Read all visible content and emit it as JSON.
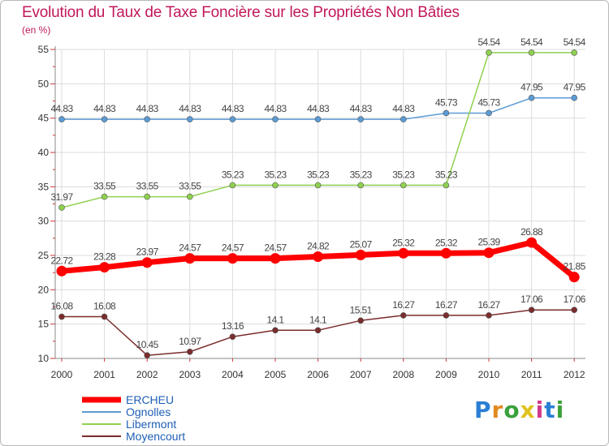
{
  "chart_data": {
    "type": "line",
    "title": "Evolution du Taux de Taxe Foncière sur les Propriétés Non Bâties",
    "ylabel": "(en %)",
    "xlabel": "",
    "ylim": [
      10,
      55
    ],
    "yticks": [
      10,
      15,
      20,
      25,
      30,
      35,
      40,
      45,
      50,
      55
    ],
    "categories": [
      "2000",
      "2001",
      "2002",
      "2003",
      "2004",
      "2005",
      "2006",
      "2007",
      "2008",
      "2009",
      "2010",
      "2011",
      "2012"
    ],
    "grid": true,
    "legend_position": "bottom-left",
    "series": [
      {
        "name": "ERCHEU",
        "color": "#ff0000",
        "emphasis": true,
        "values": [
          22.72,
          23.28,
          23.97,
          24.57,
          24.57,
          24.57,
          24.82,
          25.07,
          25.32,
          25.32,
          25.39,
          26.88,
          21.85
        ],
        "labels": [
          "22.72",
          "23.28",
          "23.97",
          "24.57",
          "24.57",
          "24.57",
          "24.82",
          "25.07",
          "25.32",
          "25.32",
          "25.39",
          "26.88",
          "21.85"
        ]
      },
      {
        "name": "Ognolles",
        "color": "#5b9bd5",
        "emphasis": false,
        "values": [
          44.83,
          44.83,
          44.83,
          44.83,
          44.83,
          44.83,
          44.83,
          44.83,
          44.83,
          45.73,
          45.73,
          47.95,
          47.95
        ],
        "labels": [
          "44.83",
          "44.83",
          "44.83",
          "44.83",
          "44.83",
          "44.83",
          "44.83",
          "44.83",
          "44.83",
          "45.73",
          "45.73",
          "47.95",
          "47.95"
        ]
      },
      {
        "name": "Libermont",
        "color": "#8fd14f",
        "emphasis": false,
        "values": [
          31.97,
          33.55,
          33.55,
          33.55,
          35.23,
          35.23,
          35.23,
          35.23,
          35.23,
          35.23,
          54.54,
          54.54,
          54.54
        ],
        "labels": [
          "31.97",
          "33.55",
          "33.55",
          "33.55",
          "35.23",
          "35.23",
          "35.23",
          "35.23",
          "35.23",
          "35.23",
          "54.54",
          "54.54",
          "54.54"
        ]
      },
      {
        "name": "Moyencourt",
        "color": "#7b2c2c",
        "emphasis": false,
        "values": [
          16.08,
          16.08,
          10.45,
          10.97,
          13.16,
          14.1,
          14.1,
          15.51,
          16.27,
          16.27,
          16.27,
          17.06,
          17.06
        ],
        "labels": [
          "16.08",
          "16.08",
          "10.45",
          "10.97",
          "13.16",
          "14.1",
          "14.1",
          "15.51",
          "16.27",
          "16.27",
          "16.27",
          "17.06",
          "17.06"
        ]
      }
    ]
  },
  "brand": {
    "letters": [
      "P",
      "r",
      "o",
      "x",
      "i",
      "t",
      "i"
    ],
    "colors": [
      "#2a7fd4",
      "#e08a1e",
      "#3aa13a",
      "#e0c21e",
      "#d13a8c",
      "#2a7fd4",
      "#3aa13a"
    ]
  }
}
